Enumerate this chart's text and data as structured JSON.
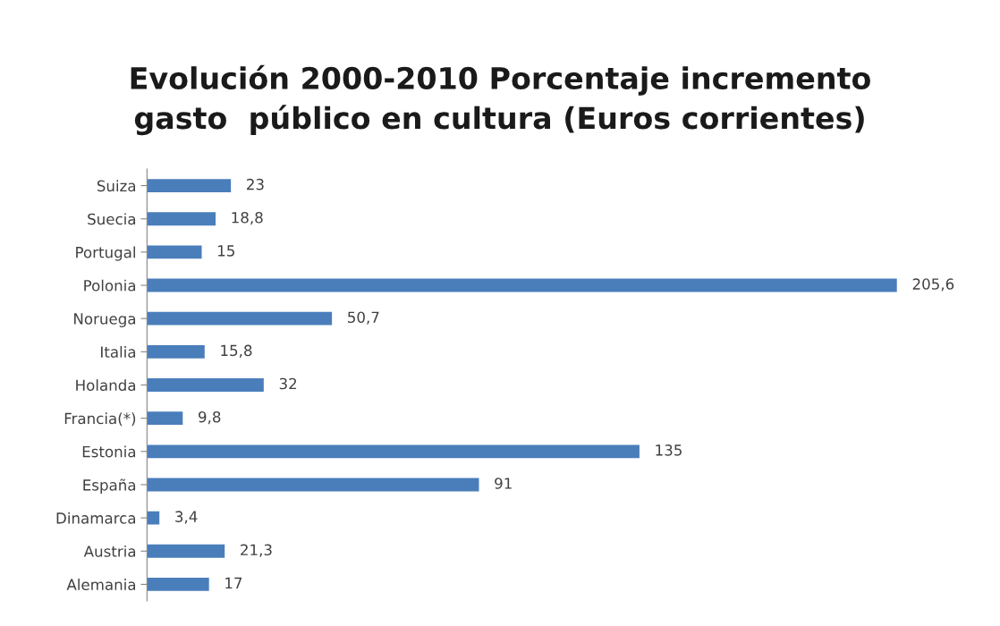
{
  "chart_data": {
    "type": "bar",
    "orientation": "horizontal",
    "title": "Evolución 2000-2010 Porcentaje incremento\ngasto  público en cultura (Euros corrientes)",
    "categories": [
      "Suiza",
      "Suecia",
      "Portugal",
      "Polonia",
      "Noruega",
      "Italia",
      "Holanda",
      "Francia(*)",
      "Estonia",
      "España",
      "Dinamarca",
      "Austria",
      "Alemania"
    ],
    "values": [
      23,
      18.8,
      15,
      205.6,
      50.7,
      15.8,
      32,
      9.8,
      135,
      91,
      3.4,
      21.3,
      17
    ],
    "value_labels": [
      "23",
      "18,8",
      "15",
      "205,6",
      "50,7",
      "15,8",
      "32",
      "9,8",
      "135",
      "91",
      "3,4",
      "21,3",
      "17"
    ],
    "color": "#4a7ebb",
    "grid": false,
    "legend": false
  }
}
